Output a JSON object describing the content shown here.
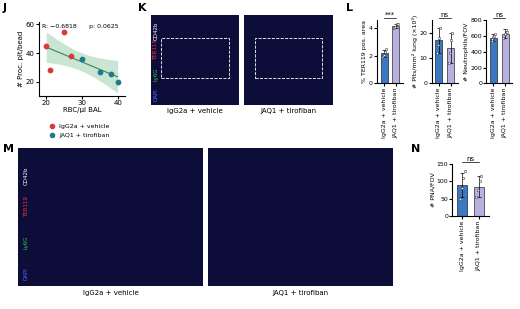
{
  "panels": [
    "J",
    "K",
    "L",
    "M",
    "N"
  ],
  "chart_data": [
    {
      "type": "scatter",
      "xlabel": "RBC/µl BAL",
      "ylabel": "# Proc. plt/bead",
      "annotations": [
        "R: −0.6818",
        "p: 0.0625"
      ],
      "series": [
        {
          "name": "IgG2a + vehicle",
          "color": "#d93a3a",
          "marker": "o",
          "x": [
            20,
            21,
            25,
            27
          ],
          "values": [
            45,
            28,
            55,
            38
          ]
        },
        {
          "name": "JAQ1 + tirofiban",
          "color": "#1f7a8c",
          "marker": "o",
          "x": [
            30,
            35,
            38,
            40
          ],
          "values": [
            36,
            27,
            25,
            20
          ]
        }
      ],
      "xlim": [
        18,
        42
      ],
      "xticks": [
        20,
        30,
        40
      ],
      "ylim": [
        10,
        62
      ],
      "yticks": [
        20,
        40,
        60
      ],
      "grid": false,
      "legend": "below"
    },
    {
      "type": "bar",
      "ylabel": "% TER119 pos. area",
      "categories": [
        "IgG2a + vehicle",
        "JAQ1 + tirofiban"
      ],
      "values": [
        2.2,
        4.2
      ],
      "errors": [
        0.25,
        0.15
      ],
      "points": [
        [
          1.9,
          2.0,
          2.1,
          2.3,
          2.5
        ],
        [
          4.0,
          4.1,
          4.3,
          4.35
        ]
      ],
      "colors": [
        "#3a78c2",
        "#b8b0e0"
      ],
      "ylim": [
        0,
        4.6
      ],
      "yticks": [
        0,
        2,
        4
      ],
      "annotations": [
        "***"
      ],
      "grid": false
    },
    {
      "type": "bar",
      "ylabel": "# Plts/mm² lung (×10³)",
      "categories": [
        "IgG2a + vehicle",
        "JAQ1 + tirofiban"
      ],
      "values": [
        17,
        14
      ],
      "errors": [
        5,
        6
      ],
      "points": [
        [
          12,
          15,
          18,
          22
        ],
        [
          8,
          12,
          17,
          20
        ]
      ],
      "colors": [
        "#3a78c2",
        "#b8b0e0"
      ],
      "ylim": [
        0,
        25
      ],
      "yticks": [
        0,
        10,
        20
      ],
      "annotations": [
        "ns"
      ],
      "grid": false
    },
    {
      "type": "bar",
      "ylabel": "# Neutrophils/FOV",
      "categories": [
        "IgG2a + vehicle",
        "JAQ1 + tirofiban"
      ],
      "values": [
        580,
        630
      ],
      "errors": [
        40,
        60
      ],
      "points": [
        [
          540,
          560,
          590,
          600,
          620
        ],
        [
          570,
          620,
          680,
          650
        ]
      ],
      "colors": [
        "#3a78c2",
        "#b8b0e0"
      ],
      "ylim": [
        0,
        800
      ],
      "yticks": [
        0,
        200,
        400,
        600,
        800
      ],
      "annotations": [
        "ns"
      ],
      "grid": false
    },
    {
      "type": "bar",
      "ylabel": "# PNA/FOV",
      "categories": [
        "IgG2a + vehicle",
        "JAQ1 + tirofiban"
      ],
      "values": [
        90,
        85
      ],
      "errors": [
        35,
        30
      ],
      "points": [
        [
          50,
          80,
          110,
          130
        ],
        [
          55,
          75,
          100,
          115
        ]
      ],
      "colors": [
        "#3a78c2",
        "#b8b0e0"
      ],
      "ylim": [
        0,
        150
      ],
      "yticks": [
        0,
        50,
        100,
        150
      ],
      "annotations": [
        "ns"
      ],
      "grid": false
    }
  ],
  "images": [
    {
      "panel": "K",
      "groups": [
        "IgG2a + vehicle",
        "JAQ1 + tirofiban"
      ],
      "channels": [
        {
          "name": "DAPI",
          "color": "#4a6cff"
        },
        {
          "name": "Ly6G",
          "color": "#33cc33"
        },
        {
          "name": "TER119",
          "color": "#ff3333"
        },
        {
          "name": "CD42b",
          "color": "#ffffff"
        }
      ]
    },
    {
      "panel": "M",
      "groups": [
        "IgG2a + vehicle",
        "JAQ1 + tirofiban"
      ],
      "channels": [
        {
          "name": "DAPI",
          "color": "#4a6cff"
        },
        {
          "name": "Ly6G",
          "color": "#33cc33"
        },
        {
          "name": "TER119",
          "color": "#ff3333"
        },
        {
          "name": "CD42b",
          "color": "#ffffff"
        }
      ]
    }
  ]
}
